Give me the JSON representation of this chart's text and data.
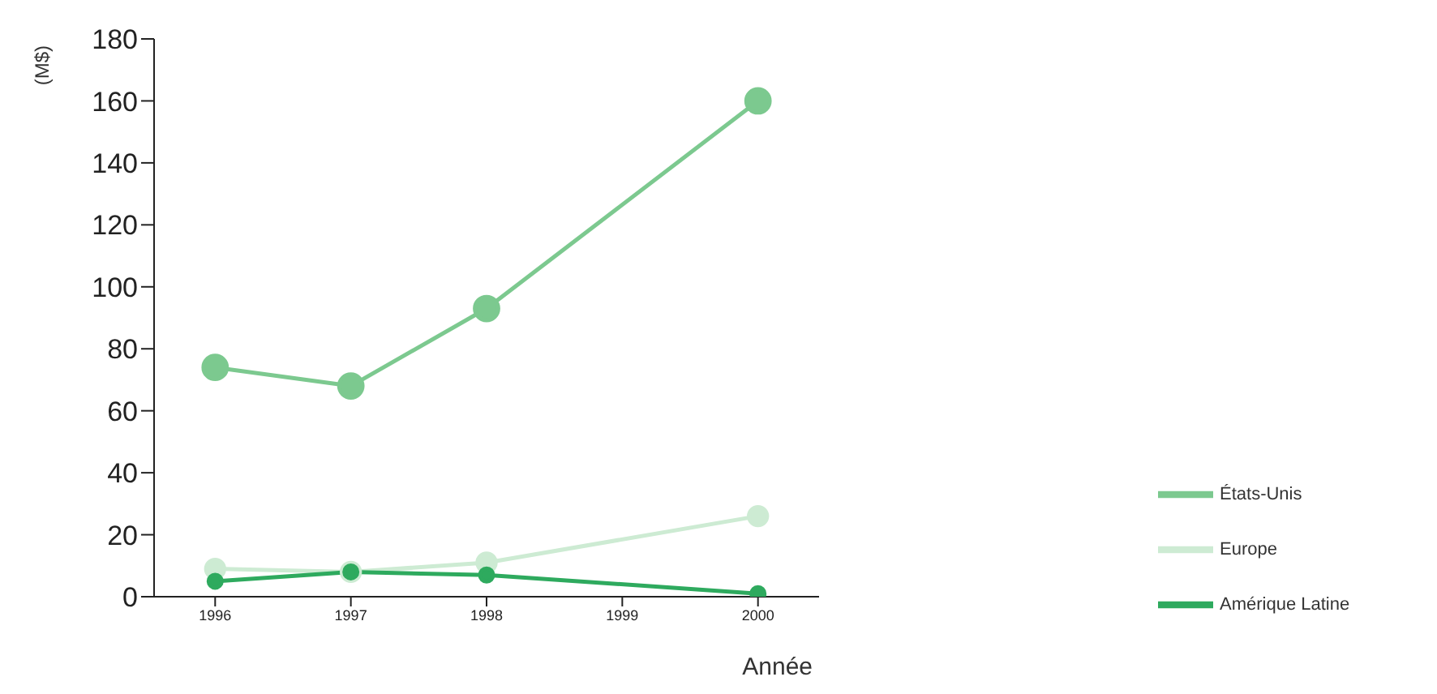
{
  "chart_data": {
    "type": "line",
    "xlabel": "Année",
    "ylabel": "(M$)",
    "x": [
      1996,
      1997,
      1998,
      2000
    ],
    "series": [
      {
        "name": "États-Unis",
        "color": "#7cc98f",
        "values": [
          74,
          68,
          93,
          160
        ]
      },
      {
        "name": "Europe",
        "color": "#cdebd3",
        "values": [
          9,
          8,
          11,
          26
        ]
      },
      {
        "name": "Amérique Latine",
        "color": "#2eaa5e",
        "values": [
          5,
          8,
          7,
          1
        ]
      }
    ],
    "xlim": [
      1995.55,
      2000.45
    ],
    "xticks": [
      1996,
      1997,
      1998,
      1999,
      2000
    ],
    "ylim": [
      0,
      180
    ],
    "yticks": [
      0,
      20,
      40,
      60,
      80,
      100,
      120,
      140,
      160,
      180
    ],
    "grid": false,
    "legend": "bottom right",
    "marker": "circle",
    "line_style": "solid"
  }
}
